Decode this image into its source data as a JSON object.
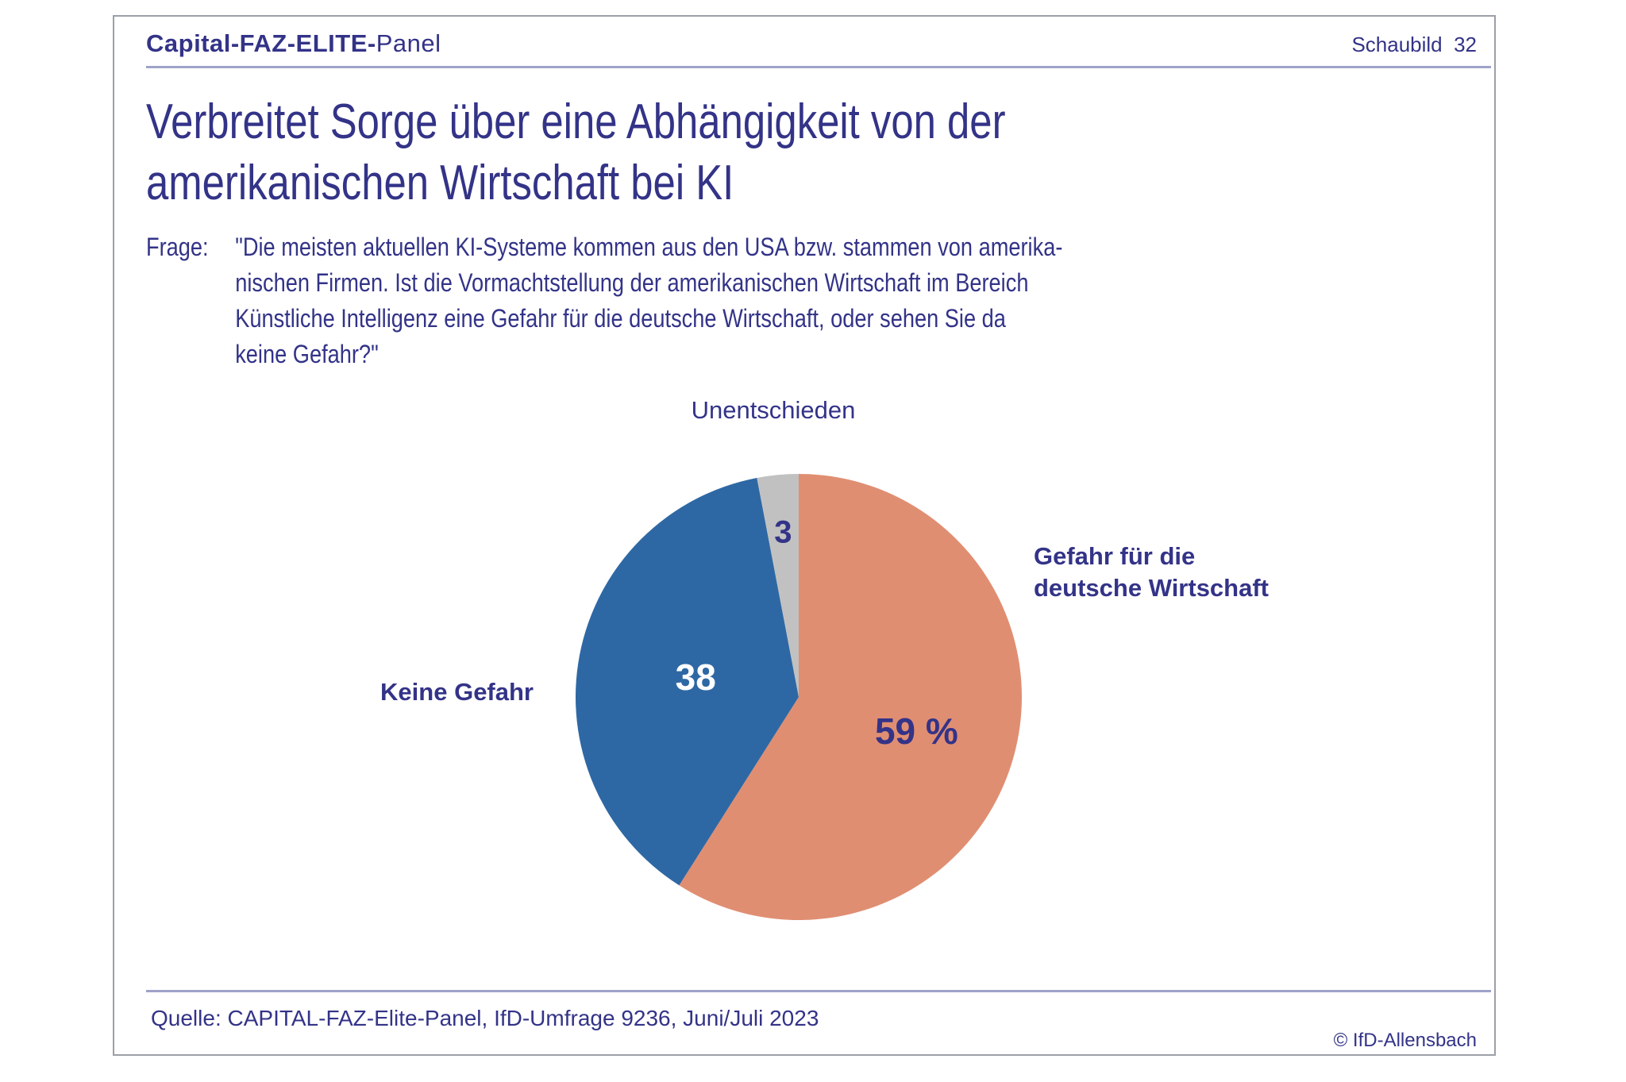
{
  "header": {
    "brand_bold": "Capital-FAZ-ELITE-",
    "brand_regular": "Panel",
    "schaubild_label": "Schaubild  32"
  },
  "title": {
    "lines": [
      "Verbreitet Sorge über eine Abhängigkeit von der",
      "amerikanischen Wirtschaft bei KI"
    ]
  },
  "question": {
    "label": "Frage:",
    "lines": [
      "\"Die meisten aktuellen KI-Systeme kommen aus den USA bzw. stammen von amerika-",
      "nischen Firmen. Ist die Vormachtstellung der amerikanischen Wirtschaft im Bereich",
      "Künstliche Intelligenz eine Gefahr für die deutsche Wirtschaft, oder sehen Sie da",
      "keine Gefahr?\""
    ]
  },
  "footer": {
    "source": "Quelle: CAPITAL-FAZ-Elite-Panel, IfD-Umfrage 9236, Juni/Juli 2023",
    "copyright": "© IfD-Allensbach"
  },
  "colors": {
    "navy_text": "#333388",
    "rule_lavender": "#9fa3c9",
    "panel_border_gray": "#9ca0a8",
    "pie_salmon": "#e08e72",
    "pie_blue": "#2e68a4",
    "pie_gray": "#c1c1c1",
    "value_label_white": "#ffffff"
  },
  "chart_data": {
    "type": "pie",
    "title": "Verbreitet Sorge über eine Abhängigkeit von der amerikanischen Wirtschaft bei KI",
    "unit": "percent",
    "total": 100,
    "start_angle_deg": 0,
    "direction": "clockwise",
    "slices": [
      {
        "label": "Gefahr für die deutsche Wirtschaft",
        "value": 59,
        "display": "59 %",
        "color": "#e08e72",
        "value_label_color": "#333388",
        "label_radius": 0.55,
        "value_font": 46
      },
      {
        "label": "Keine Gefahr",
        "value": 38,
        "display": "38",
        "color": "#2e68a4",
        "value_label_color": "#ffffff",
        "label_radius": 0.47,
        "value_font": 46
      },
      {
        "label": "Unentschieden",
        "value": 3,
        "display": "3",
        "color": "#c1c1c1",
        "value_label_color": "#333388",
        "label_radius": 0.74,
        "value_font": 40
      }
    ],
    "callouts": {
      "top": "Unentschieden",
      "left": "Keine Gefahr",
      "right_lines": [
        "Gefahr für die",
        "deutsche Wirtschaft"
      ]
    }
  }
}
